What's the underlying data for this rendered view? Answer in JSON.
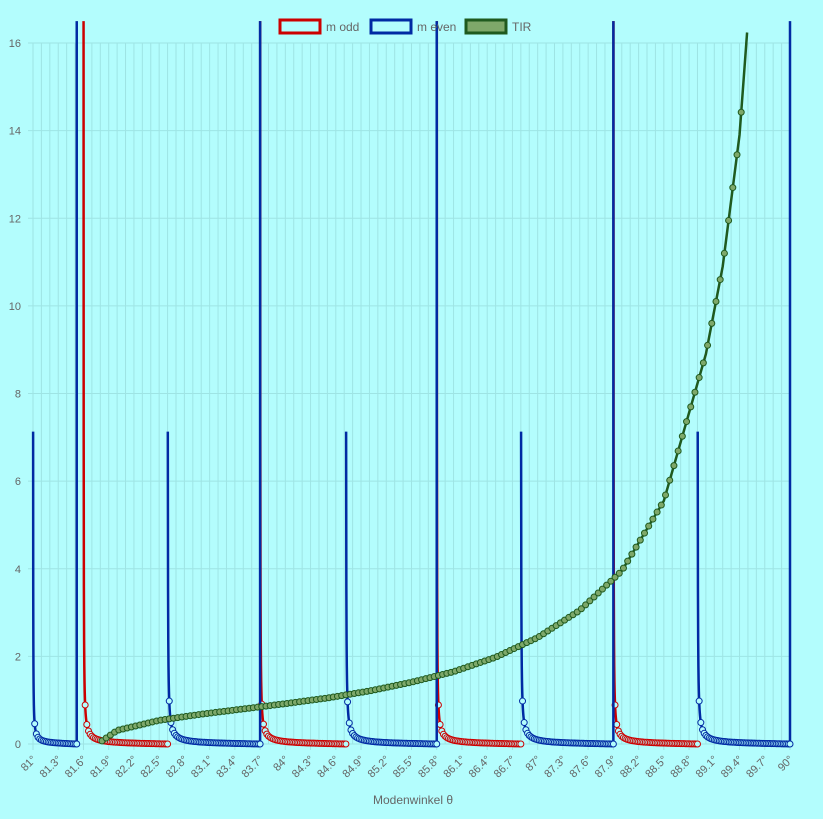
{
  "colors": {
    "background": "#b3fdfd",
    "grid": "#9ee4e4",
    "m_odd": "#cc0000",
    "m_even": "#002aa3",
    "tir": "#1f5a1f",
    "tir_fill": "#7ea86a"
  },
  "chart_data": {
    "type": "line",
    "xlabel": "Modenwinkel θ",
    "ylabel": "",
    "xlim": [
      81,
      90
    ],
    "ylim": [
      0,
      16
    ],
    "x_tick_labels": [
      "81°",
      "81.3°",
      "81.6°",
      "81.9°",
      "82.2°",
      "82.5°",
      "82.8°",
      "83.1°",
      "83.4°",
      "83.7°",
      "84°",
      "84.3°",
      "84.6°",
      "84.9°",
      "85.2°",
      "85.5°",
      "85.8°",
      "86.1°",
      "86.4°",
      "86.7°",
      "87°",
      "87.3°",
      "87.6°",
      "87.9°",
      "88.2°",
      "88.5°",
      "88.8°",
      "89.1°",
      "89.4°",
      "89.7°",
      "90°"
    ],
    "y_tick_labels": [
      "0",
      "2",
      "4",
      "6",
      "8",
      "10",
      "12",
      "14",
      "16"
    ],
    "grid": true,
    "legend_position": "top-center",
    "legend": [
      "m odd",
      "m even",
      "TIR"
    ],
    "series": [
      {
        "name": "m odd",
        "kind": "tan",
        "branches": [
          [
            81.6,
            82.6
          ],
          [
            83.7,
            84.72
          ],
          [
            85.8,
            86.8
          ],
          [
            87.9,
            88.9
          ]
        ]
      },
      {
        "name": "m even",
        "kind": "cot",
        "branches": [
          [
            81.0,
            81.52
          ],
          [
            82.6,
            83.7
          ],
          [
            84.72,
            85.8
          ],
          [
            86.8,
            87.9
          ],
          [
            88.9,
            90.0
          ]
        ]
      },
      {
        "name": "TIR",
        "kind": "sqrt",
        "x": [
          81.82,
          82,
          82.5,
          83,
          83.5,
          84,
          84.5,
          85,
          85.5,
          86,
          86.5,
          87,
          87.5,
          88,
          88.5,
          89,
          89.2,
          89.4,
          89.5
        ],
        "y": [
          0.07,
          0.31,
          0.54,
          0.68,
          0.8,
          0.92,
          1.05,
          1.21,
          1.41,
          1.65,
          1.98,
          2.43,
          3.05,
          3.95,
          5.55,
          8.9,
          10.9,
          13.9,
          16.5
        ]
      }
    ]
  }
}
